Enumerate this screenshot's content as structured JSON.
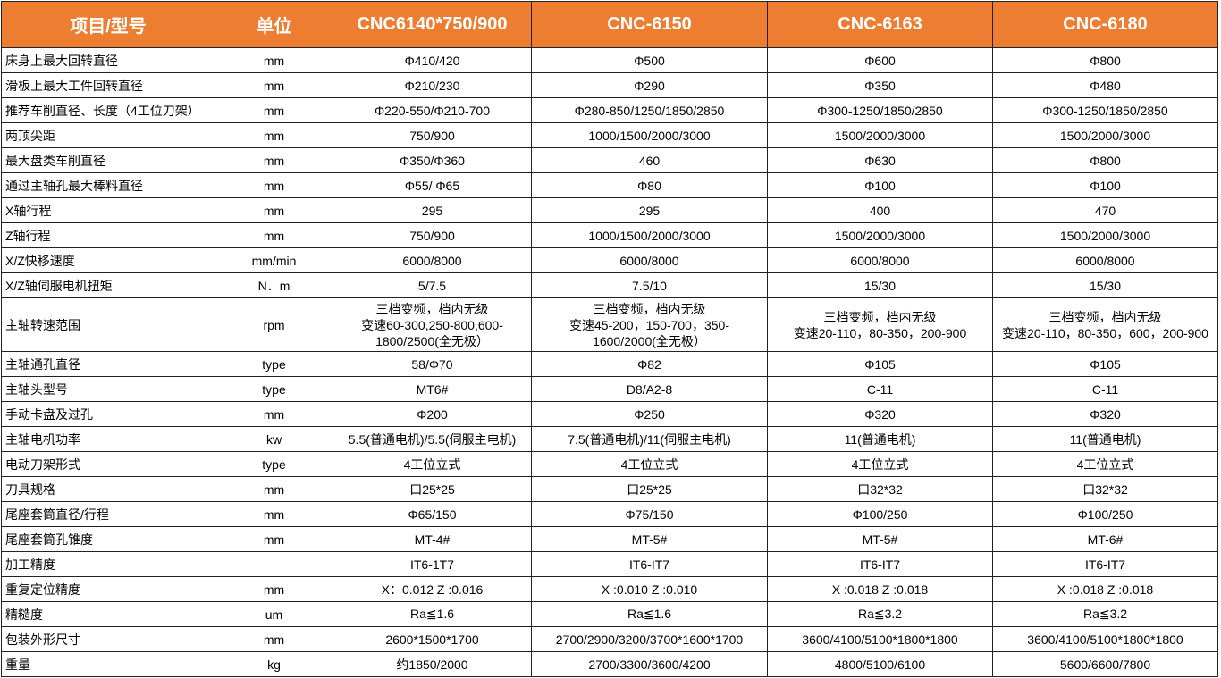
{
  "header_color": "#ED7D31",
  "headers": [
    "项目/型号",
    "单位",
    "CNC6140*750/900",
    "CNC-6150",
    "CNC-6163",
    "CNC-6180"
  ],
  "rows": [
    [
      "床身上最大回转直径",
      "mm",
      "Φ410/420",
      "Φ500",
      "Φ600",
      "Φ800"
    ],
    [
      "滑板上最大工件回转直径",
      "mm",
      "Φ210/230",
      "Φ290",
      "Φ350",
      "Φ480"
    ],
    [
      "推荐车削直径、长度（4工位刀架）",
      "mm",
      "Φ220-550/Φ210-700",
      "Φ280-850/1250/1850/2850",
      "Φ300-1250/1850/2850",
      "Φ300-1250/1850/2850"
    ],
    [
      "两顶尖距",
      "mm",
      "750/900",
      "1000/1500/2000/3000",
      "1500/2000/3000",
      "1500/2000/3000"
    ],
    [
      "最大盘类车削直径",
      "mm",
      "Φ350/Φ360",
      "460",
      "Φ630",
      "Φ800"
    ],
    [
      "通过主轴孔最大棒料直径",
      "mm",
      "Φ55/ Φ65",
      "Φ80",
      "Φ100",
      "Φ100"
    ],
    [
      "X轴行程",
      "mm",
      "295",
      "295",
      "400",
      "470"
    ],
    [
      "Z轴行程",
      "mm",
      "750/900",
      "1000/1500/2000/3000",
      "1500/2000/3000",
      "1500/2000/3000"
    ],
    [
      "X/Z快移速度",
      "mm/min",
      "6000/8000",
      "6000/8000",
      "6000/8000",
      "6000/8000"
    ],
    [
      "X/Z轴伺服电机扭矩",
      "N．m",
      "5/7.5",
      "7.5/10",
      "15/30",
      "15/30"
    ],
    [
      "主轴转速范围",
      "rpm",
      "三档变频，档内无级\n变速60-300,250-800,600-\n1800/2500(全无极）",
      "三档变频，档内无级\n变速45-200，150-700，350-\n1600/2000(全无极）",
      "三档变频，档内无级\n变速20-110，80-350，200-900",
      "三档变频，档内无级\n变速20-110，80-350，600，200-900"
    ],
    [
      "主轴通孔直径",
      "type",
      "58/Φ70",
      "Φ82",
      "Φ105",
      "Φ105"
    ],
    [
      "主轴头型号",
      "type",
      "MT6#",
      "D8/A2-8",
      "C-11",
      "C-11"
    ],
    [
      "手动卡盘及过孔",
      "mm",
      "Φ200",
      "Φ250",
      "Φ320",
      "Φ320"
    ],
    [
      "主轴电机功率",
      "kw",
      "5.5(普通电机)/5.5(伺服主电机)",
      "7.5(普通电机)/11(伺服主电机)",
      "11(普通电机)",
      "11(普通电机)"
    ],
    [
      "电动刀架形式",
      "type",
      "4工位立式",
      "4工位立式",
      "4工位立式",
      "4工位立式"
    ],
    [
      "刀具规格",
      "mm",
      "口25*25",
      "口25*25",
      "口32*32",
      "口32*32"
    ],
    [
      "尾座套筒直径/行程",
      "mm",
      "Φ65/150",
      "Φ75/150",
      "Φ100/250",
      "Φ100/250"
    ],
    [
      "尾座套筒孔锥度",
      "mm",
      "MT-4#",
      "MT-5#",
      "MT-5#",
      "MT-6#"
    ],
    [
      "加工精度",
      "",
      "IT6-1T7",
      "IT6-IT7",
      "IT6-IT7",
      "IT6-IT7"
    ],
    [
      "重复定位精度",
      "mm",
      "X：0.012 Z :0.016",
      "X :0.010 Z :0.010",
      "X :0.018 Z :0.018",
      "X :0.018 Z :0.018"
    ],
    [
      "精糙度",
      "um",
      "Ra≦1.6",
      "Ra≦1.6",
      "Ra≦3.2",
      "Ra≦3.2"
    ],
    [
      "包装外形尺寸",
      "mm",
      "2600*1500*1700",
      "2700/2900/3200/3700*1600*1700",
      "3600/4100/5100*1800*1800",
      "3600/4100/5100*1800*1800"
    ],
    [
      "重量",
      "kg",
      "约1850/2000",
      "2700/3300/3600/4200",
      "4800/5100/6100",
      "5600/6600/7800"
    ]
  ]
}
